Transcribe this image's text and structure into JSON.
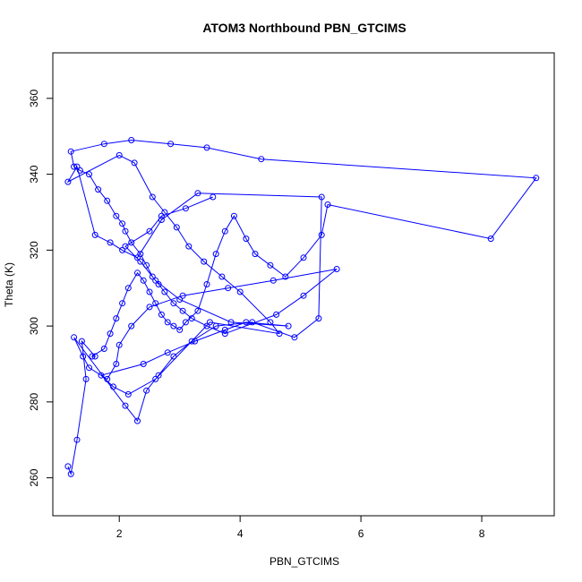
{
  "chart_data": {
    "type": "line",
    "title": "ATOM3 Northbound PBN_GTCIMS",
    "xlabel": "PBN_GTCIMS",
    "ylabel": "Theta (K)",
    "xlim": [
      0.9,
      9.2
    ],
    "ylim": [
      250,
      372
    ],
    "xticks": [
      2,
      4,
      6,
      8
    ],
    "yticks": [
      260,
      280,
      300,
      320,
      340,
      360
    ],
    "grid": false,
    "legend": "none",
    "color": "#0000ff",
    "marker": "open-circle",
    "series": [
      {
        "x": [
          1.15,
          1.2,
          1.3,
          1.45,
          1.38,
          1.6,
          1.55,
          1.75,
          1.85,
          1.95,
          2.05,
          2.15,
          2.3,
          2.4,
          2.5,
          2.6,
          2.7,
          2.8,
          2.9,
          3.0,
          3.1,
          3.3,
          3.45,
          3.6,
          3.75,
          3.9,
          4.1,
          4.25,
          4.5,
          4.75,
          5.05,
          5.35,
          5.45,
          8.15,
          8.9,
          4.35,
          3.45,
          2.85,
          2.2,
          1.75,
          1.2,
          1.25,
          1.35,
          1.5,
          1.65,
          1.8,
          1.95,
          2.05,
          2.1,
          2.2,
          2.35,
          2.45,
          2.55,
          2.65,
          2.75,
          2.9,
          3.05,
          3.2,
          3.45,
          3.75,
          4.6,
          5.05,
          5.6,
          4.55,
          3.8,
          3.05,
          2.5,
          2.2,
          2.0,
          1.95,
          1.8,
          1.5,
          1.4,
          1.25,
          2.1,
          2.3,
          2.45,
          2.65,
          2.9,
          3.2,
          3.6,
          4.2,
          4.9,
          5.3,
          5.35,
          3.3,
          2.7,
          2.3,
          2.05,
          1.85,
          1.6,
          1.3,
          1.15,
          2.0,
          2.25,
          2.55,
          2.75,
          2.95,
          3.15,
          3.4,
          3.7,
          4.0,
          4.5,
          4.65,
          3.5,
          2.6,
          2.15,
          1.9,
          1.7,
          2.4,
          2.8,
          3.25,
          3.75,
          4.1,
          4.8,
          3.85,
          3.0,
          2.6,
          2.35,
          2.1,
          2.5,
          2.7,
          3.1,
          3.55
        ],
        "y": [
          263,
          261,
          270,
          286,
          296,
          292,
          292,
          294,
          298,
          302,
          306,
          310,
          314,
          312,
          309,
          306,
          303,
          301,
          300,
          299,
          301,
          304,
          311,
          319,
          325,
          329,
          323,
          319,
          316,
          313,
          318,
          324,
          332,
          323,
          339,
          344,
          347,
          348,
          349,
          348,
          346,
          342,
          341,
          340,
          336,
          333,
          329,
          327,
          325,
          322,
          319,
          316,
          313,
          311,
          309,
          306,
          304,
          302,
          300,
          298,
          303,
          308,
          315,
          312,
          310,
          308,
          305,
          300,
          295,
          290,
          286,
          289,
          292,
          297,
          279,
          275,
          283,
          287,
          292,
          296,
          300,
          301,
          297,
          302,
          334,
          335,
          328,
          318,
          320,
          322,
          324,
          342,
          338,
          345,
          343,
          334,
          330,
          326,
          321,
          317,
          313,
          309,
          301,
          298,
          301,
          286,
          282,
          284,
          287,
          290,
          293,
          296,
          299,
          301,
          300,
          301,
          307,
          312,
          317,
          321,
          325,
          329,
          331,
          334
        ]
      }
    ]
  }
}
